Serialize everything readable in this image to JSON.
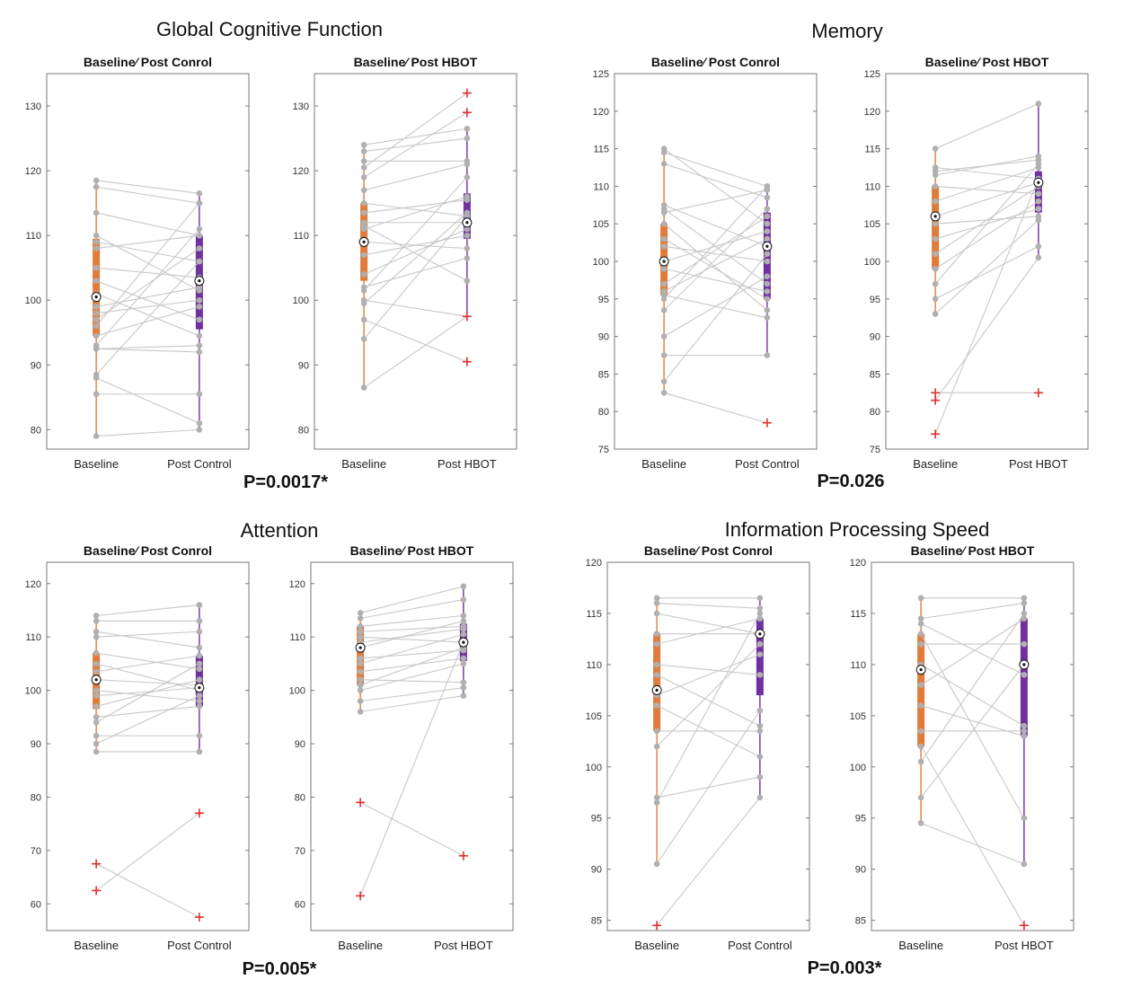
{
  "colors": {
    "baseline": "#e07b39",
    "post": "#7030a0",
    "points": "#b0b0b0",
    "lines": "#c8c8c8",
    "outlier": "#e03030"
  },
  "p_values": [
    "P=0.0017*",
    "P=0.026",
    "P=0.005*",
    "P=0.003*"
  ],
  "chart_data": [
    {
      "type": "boxplot-paired",
      "domain_title": "Global Cognitive Function",
      "title": "Baseline∕ Post Conrol",
      "categories": [
        "Baseline",
        "Post Control"
      ],
      "ylim": [
        77,
        135
      ],
      "yticks": [
        80,
        90,
        100,
        110,
        120,
        130
      ],
      "pairs": [
        [
          118.5,
          116.5
        ],
        [
          117.5,
          115
        ],
        [
          113.5,
          110
        ],
        [
          110,
          101.5
        ],
        [
          109,
          106
        ],
        [
          108,
          110
        ],
        [
          105,
          103.5
        ],
        [
          103,
          97
        ],
        [
          101,
          94.5
        ],
        [
          99,
          102
        ],
        [
          98,
          100
        ],
        [
          97,
          108
        ],
        [
          96,
          115
        ],
        [
          94.5,
          99
        ],
        [
          93,
          111
        ],
        [
          92.5,
          92
        ],
        [
          92.5,
          93
        ],
        [
          88.5,
          106
        ],
        [
          88,
          81
        ],
        [
          85.5,
          85.5
        ],
        [
          79,
          80
        ]
      ],
      "box": {
        "Baseline": {
          "q1": 94.5,
          "median": 100.5,
          "q3": 109.5,
          "lo": 79,
          "hi": 118.5
        },
        "Post Control": {
          "q1": 95.5,
          "median": 103,
          "q3": 110,
          "lo": 80,
          "hi": 116.5
        }
      },
      "outliers": {
        "Baseline": [],
        "Post Control": []
      }
    },
    {
      "type": "boxplot-paired",
      "title": "Baseline∕ Post HBOT",
      "categories": [
        "Baseline",
        "Post HBOT"
      ],
      "ylim": [
        77,
        135
      ],
      "yticks": [
        80,
        90,
        100,
        110,
        120,
        130
      ],
      "pairs": [
        [
          124,
          126.5
        ],
        [
          123,
          125
        ],
        [
          121.5,
          121.5
        ],
        [
          120.5,
          132
        ],
        [
          119,
          129
        ],
        [
          117,
          121
        ],
        [
          115,
          113
        ],
        [
          113.5,
          115.5
        ],
        [
          112,
          112
        ],
        [
          111.5,
          103
        ],
        [
          111,
          116
        ],
        [
          109,
          108
        ],
        [
          107,
          110
        ],
        [
          104,
          111
        ],
        [
          102,
          106.5
        ],
        [
          101.5,
          119
        ],
        [
          100,
          97.5
        ],
        [
          99.5,
          113.5
        ],
        [
          97,
          90.5
        ],
        [
          94,
          113
        ],
        [
          86.5,
          97.5
        ]
      ],
      "box": {
        "Baseline": {
          "q1": 103,
          "median": 109,
          "q3": 115,
          "lo": 86.5,
          "hi": 124
        },
        "Post HBOT": {
          "q1": 109.5,
          "median": 112,
          "q3": 116.5,
          "lo": 98,
          "hi": 126.5
        }
      },
      "outliers": {
        "Baseline": [],
        "Post HBOT": [
          132,
          129,
          97.5,
          90.5
        ]
      }
    },
    {
      "type": "boxplot-paired",
      "domain_title": "Memory",
      "title": "Baseline∕ Post Conrol",
      "categories": [
        "Baseline",
        "Post Control"
      ],
      "ylim": [
        75,
        125
      ],
      "yticks": [
        75,
        80,
        85,
        90,
        95,
        100,
        105,
        110,
        115,
        120,
        125
      ],
      "pairs": [
        [
          115,
          105
        ],
        [
          114.5,
          110
        ],
        [
          113,
          108.5
        ],
        [
          107.5,
          102
        ],
        [
          107,
          97
        ],
        [
          106.5,
          109.5
        ],
        [
          105,
          93.5
        ],
        [
          103,
          95
        ],
        [
          102,
          100
        ],
        [
          100,
          104
        ],
        [
          99,
          96
        ],
        [
          97,
          106
        ],
        [
          96,
          103
        ],
        [
          95.5,
          92.5
        ],
        [
          95,
          110
        ],
        [
          93.5,
          107
        ],
        [
          90,
          98
        ],
        [
          87.5,
          87.5
        ],
        [
          84,
          101
        ],
        [
          82.5,
          78.5
        ]
      ],
      "box": {
        "Baseline": {
          "q1": 95.5,
          "median": 100,
          "q3": 105,
          "lo": 82.5,
          "hi": 115
        },
        "Post Control": {
          "q1": 95,
          "median": 102,
          "q3": 106.5,
          "lo": 87.5,
          "hi": 110
        }
      },
      "outliers": {
        "Baseline": [],
        "Post Control": [
          78.5
        ]
      }
    },
    {
      "type": "boxplot-paired",
      "title": "Baseline∕ Post HBOT",
      "categories": [
        "Baseline",
        "Post HBOT"
      ],
      "ylim": [
        75,
        125
      ],
      "yticks": [
        75,
        80,
        85,
        90,
        95,
        100,
        105,
        110,
        115,
        120,
        125
      ],
      "pairs": [
        [
          115,
          121
        ],
        [
          112.5,
          111
        ],
        [
          112,
          113.5
        ],
        [
          111.5,
          114
        ],
        [
          110,
          109
        ],
        [
          108,
          112.5
        ],
        [
          106,
          110.5
        ],
        [
          105,
          106
        ],
        [
          103,
          107
        ],
        [
          101,
          110
        ],
        [
          99,
          108
        ],
        [
          97,
          113
        ],
        [
          95,
          102
        ],
        [
          93,
          105.5
        ],
        [
          82.5,
          82.5
        ],
        [
          81.5,
          100.5
        ],
        [
          77,
          111
        ]
      ],
      "box": {
        "Baseline": {
          "q1": 99,
          "median": 106,
          "q3": 110,
          "lo": 93,
          "hi": 115
        },
        "Post HBOT": {
          "q1": 106.5,
          "median": 110.5,
          "q3": 112,
          "lo": 100.5,
          "hi": 121
        }
      },
      "outliers": {
        "Baseline": [
          82.5,
          81.5,
          77
        ],
        "Post HBOT": [
          82.5
        ]
      }
    },
    {
      "type": "boxplot-paired",
      "domain_title": "Attention",
      "title": "Baseline∕ Post Conrol",
      "categories": [
        "Baseline",
        "Post Control"
      ],
      "ylim": [
        55,
        124
      ],
      "yticks": [
        60,
        70,
        80,
        90,
        100,
        110,
        120
      ],
      "pairs": [
        [
          114,
          116
        ],
        [
          113,
          113
        ],
        [
          111,
          108
        ],
        [
          110,
          111
        ],
        [
          107,
          104
        ],
        [
          105,
          100
        ],
        [
          103.5,
          106.5
        ],
        [
          102,
          101
        ],
        [
          100,
          98
        ],
        [
          99,
          100.5
        ],
        [
          97,
          102
        ],
        [
          95,
          97
        ],
        [
          94,
          105
        ],
        [
          91.5,
          91.5
        ],
        [
          90,
          99
        ],
        [
          88.5,
          88.5
        ],
        [
          67.5,
          57.5
        ],
        [
          62.5,
          77
        ]
      ],
      "box": {
        "Baseline": {
          "q1": 96.5,
          "median": 102,
          "q3": 107,
          "lo": 88.5,
          "hi": 114
        },
        "Post Control": {
          "q1": 97,
          "median": 100.5,
          "q3": 106.5,
          "lo": 88.5,
          "hi": 116
        }
      },
      "outliers": {
        "Baseline": [
          67.5,
          62.5
        ],
        "Post Control": [
          77,
          57.5
        ]
      }
    },
    {
      "type": "boxplot-paired",
      "title": "Baseline∕ Post HBOT",
      "categories": [
        "Baseline",
        "Post HBOT"
      ],
      "ylim": [
        55,
        124
      ],
      "yticks": [
        60,
        70,
        80,
        90,
        100,
        110,
        120
      ],
      "pairs": [
        [
          114.5,
          119.5
        ],
        [
          113.5,
          117
        ],
        [
          112,
          114
        ],
        [
          111,
          112
        ],
        [
          110,
          109
        ],
        [
          109,
          111.5
        ],
        [
          108,
          113
        ],
        [
          106,
          107.5
        ],
        [
          105,
          110.5
        ],
        [
          103.5,
          106
        ],
        [
          102,
          101.5
        ],
        [
          101,
          108
        ],
        [
          100,
          105
        ],
        [
          98,
          100.5
        ],
        [
          96,
          99
        ],
        [
          79,
          69
        ],
        [
          61.5,
          109
        ]
      ],
      "box": {
        "Baseline": {
          "q1": 101,
          "median": 108,
          "q3": 112,
          "lo": 96,
          "hi": 114.5
        },
        "Post HBOT": {
          "q1": 105.5,
          "median": 109,
          "q3": 112.5,
          "lo": 99,
          "hi": 119.5
        }
      },
      "outliers": {
        "Baseline": [
          79,
          61.5
        ],
        "Post HBOT": [
          69
        ]
      }
    },
    {
      "type": "boxplot-paired",
      "domain_title": "Information Processing Speed",
      "title": "Baseline∕ Post Conrol",
      "categories": [
        "Baseline",
        "Post Control"
      ],
      "ylim": [
        84,
        120
      ],
      "yticks": [
        85,
        90,
        95,
        100,
        105,
        110,
        115,
        120
      ],
      "pairs": [
        [
          116.5,
          116.5
        ],
        [
          116,
          115.5
        ],
        [
          115,
          113
        ],
        [
          113,
          113
        ],
        [
          112,
          114.5
        ],
        [
          110,
          109
        ],
        [
          109,
          104
        ],
        [
          107,
          111
        ],
        [
          106,
          101
        ],
        [
          103.5,
          103.5
        ],
        [
          102,
          112
        ],
        [
          97,
          99
        ],
        [
          96.5,
          115
        ],
        [
          90.5,
          105.5
        ],
        [
          84.5,
          97
        ]
      ],
      "box": {
        "Baseline": {
          "q1": 103.5,
          "median": 107.5,
          "q3": 113,
          "lo": 90.5,
          "hi": 116.5
        },
        "Post Control": {
          "q1": 107,
          "median": 113,
          "q3": 114.5,
          "lo": 97,
          "hi": 116.5
        }
      },
      "outliers": {
        "Baseline": [
          84.5
        ],
        "Post Control": []
      }
    },
    {
      "type": "boxplot-paired",
      "title": "Baseline∕ Post HBOT",
      "categories": [
        "Baseline",
        "Post HBOT"
      ],
      "ylim": [
        84,
        120
      ],
      "yticks": [
        85,
        90,
        95,
        100,
        105,
        110,
        115,
        120
      ],
      "pairs": [
        [
          116.5,
          116.5
        ],
        [
          114.5,
          116
        ],
        [
          114,
          109
        ],
        [
          113,
          95
        ],
        [
          112,
          112
        ],
        [
          110,
          104
        ],
        [
          108,
          114.5
        ],
        [
          106,
          103
        ],
        [
          103.5,
          103.5
        ],
        [
          102,
          84.5
        ],
        [
          100.5,
          115
        ],
        [
          97,
          110
        ],
        [
          94.5,
          90.5
        ]
      ],
      "box": {
        "Baseline": {
          "q1": 102,
          "median": 109.5,
          "q3": 113,
          "lo": 94.5,
          "hi": 116.5
        },
        "Post HBOT": {
          "q1": 103,
          "median": 110,
          "q3": 114.5,
          "lo": 90.5,
          "hi": 116.5
        }
      },
      "outliers": {
        "Baseline": [],
        "Post HBOT": [
          84.5
        ]
      }
    }
  ]
}
